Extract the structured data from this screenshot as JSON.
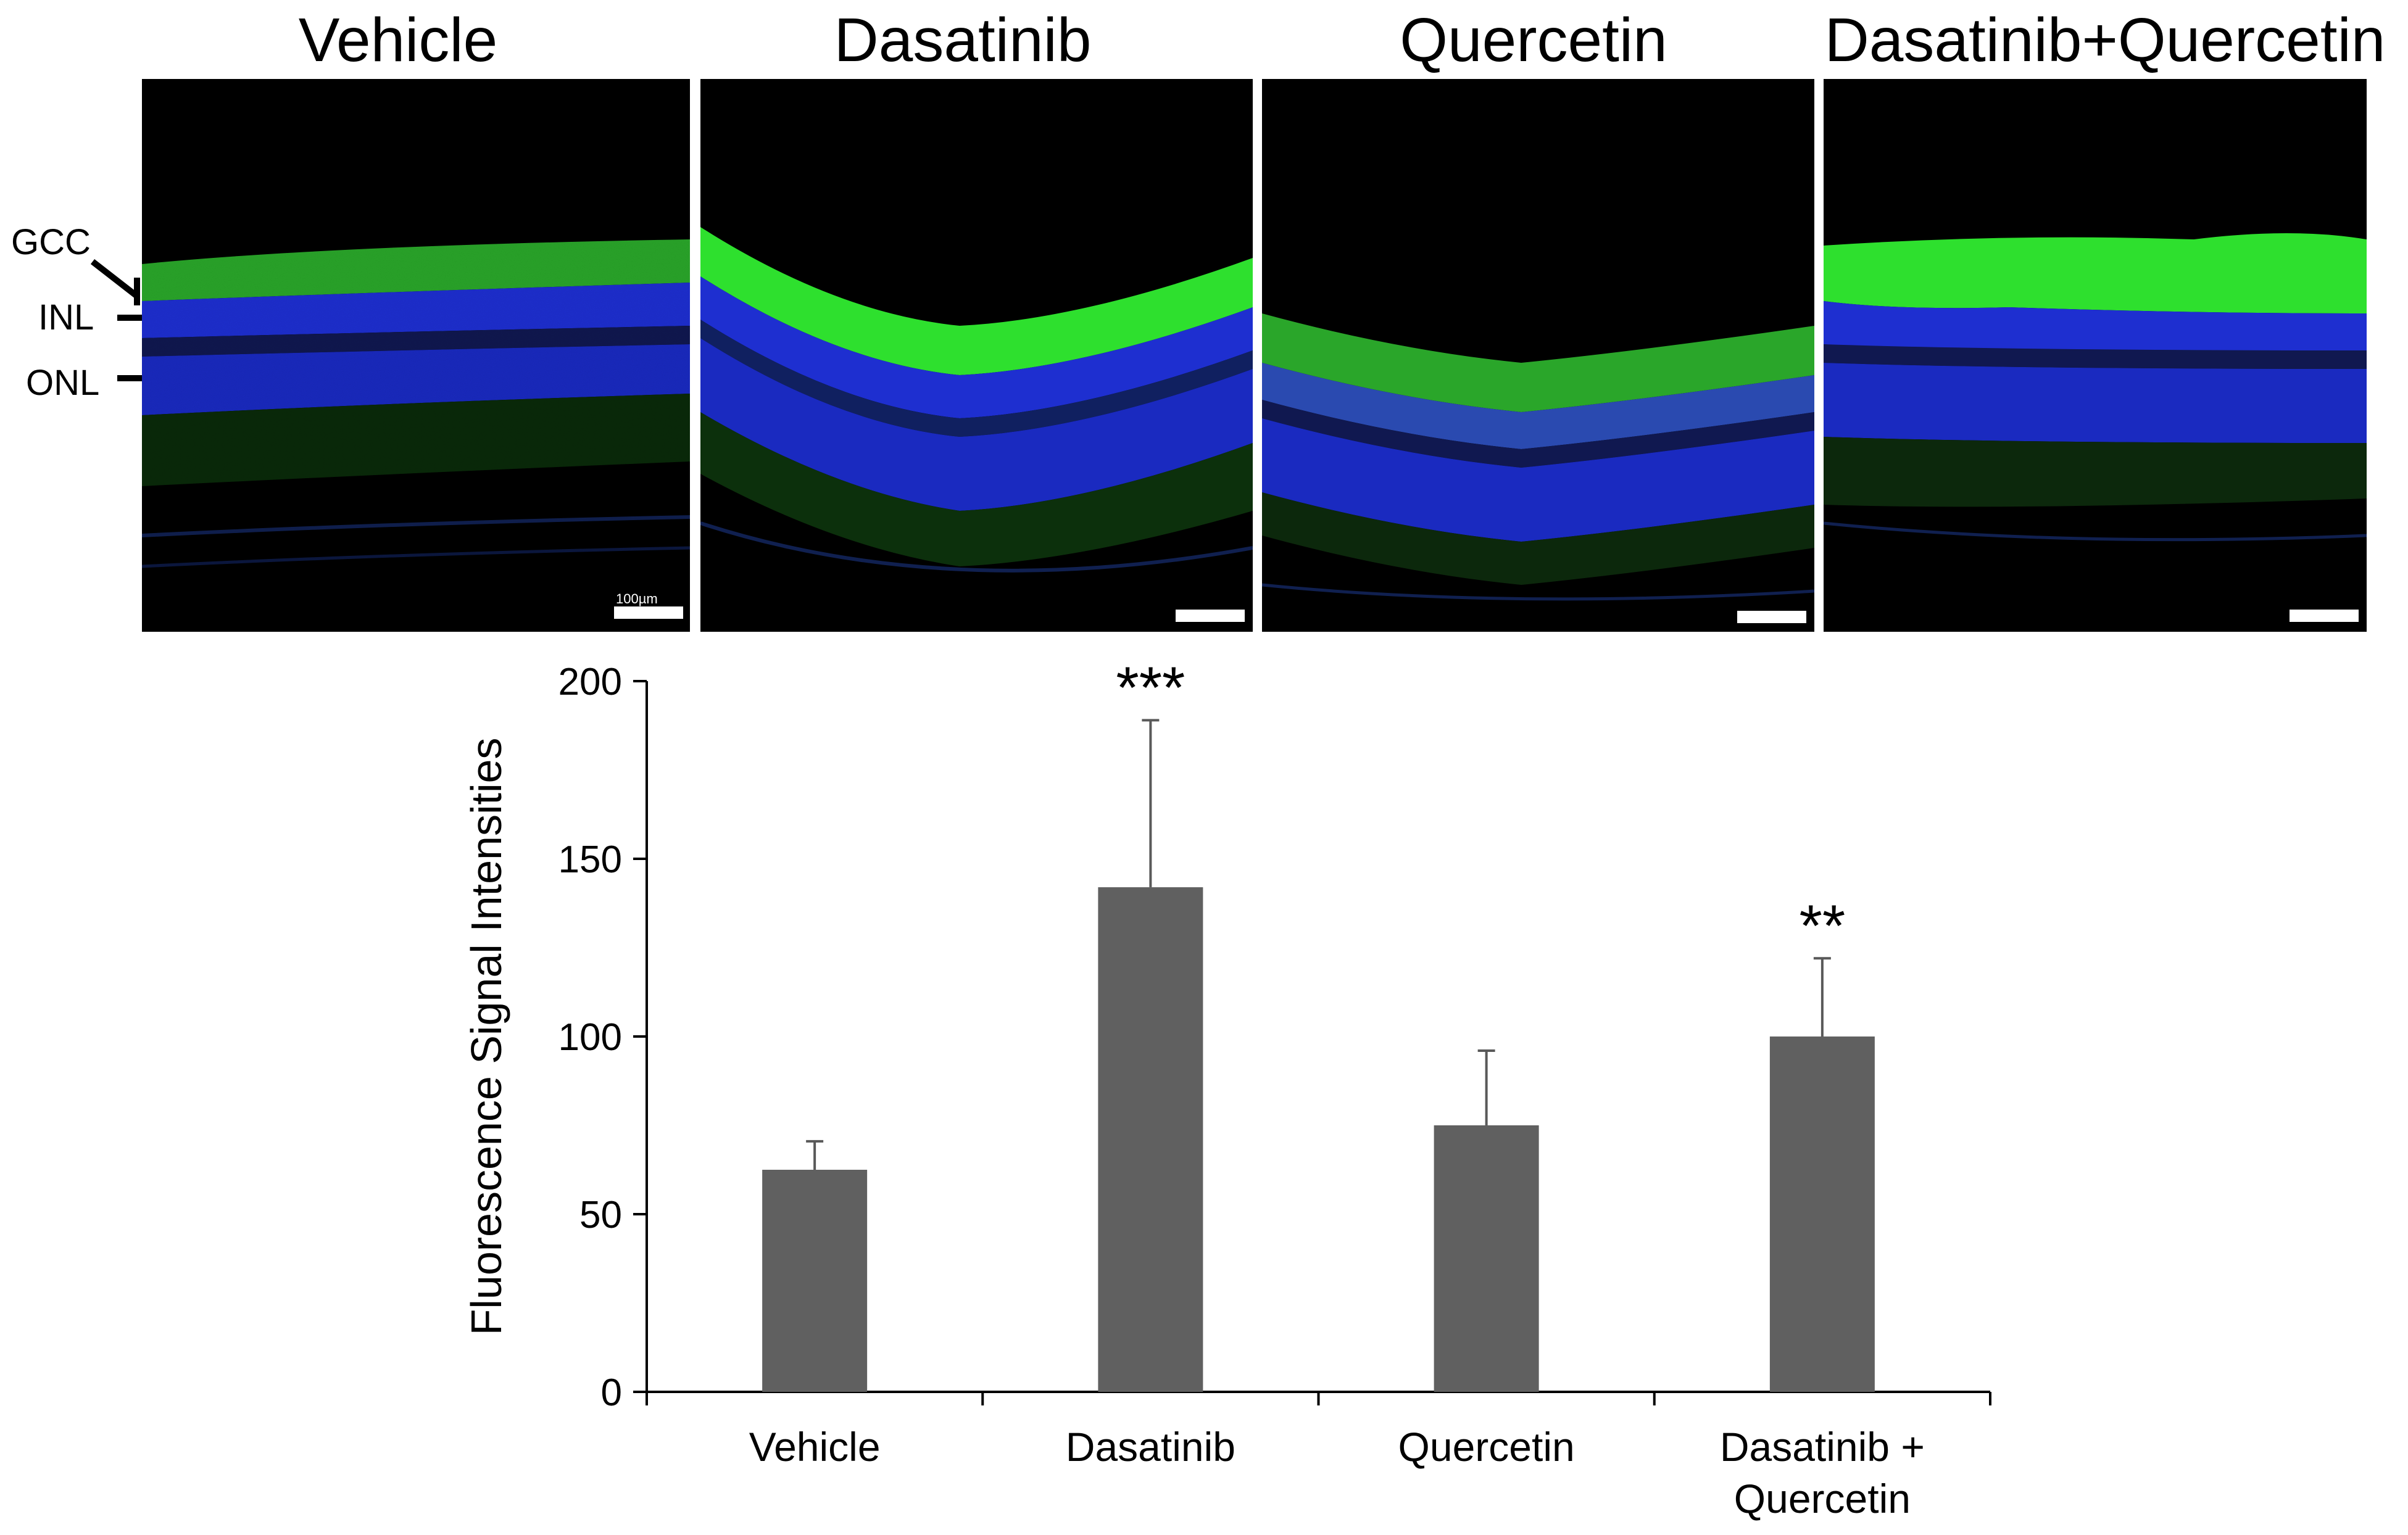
{
  "panels": [
    {
      "title": "Vehicle",
      "scale_bar_label": "100µm"
    },
    {
      "title": "Dasatinib"
    },
    {
      "title": "Quercetin"
    },
    {
      "title": "Dasatinib+Quercetin"
    }
  ],
  "layer_labels": {
    "gcc": "GCC",
    "inl": "INL",
    "onl": "ONL"
  },
  "colors": {
    "bar": "#606060",
    "gcc_green": "#2ee02e",
    "nuclei_blue": "#1e2fd0"
  },
  "chart_data": {
    "type": "bar",
    "categories": [
      "Vehicle",
      "Dasatinib",
      "Quercetin",
      "Dasatinib + Quercetin"
    ],
    "category_lines": [
      [
        "Vehicle"
      ],
      [
        "Dasatinib"
      ],
      [
        "Quercetin"
      ],
      [
        "Dasatinib +",
        "Quercetin"
      ]
    ],
    "values": [
      62.5,
      142,
      75,
      100
    ],
    "errors": [
      8,
      47,
      21,
      22
    ],
    "significance": [
      "",
      "***",
      "",
      "**"
    ],
    "ylabel": "Fluorescence Signal Intensities",
    "xlabel": "",
    "ylim": [
      0,
      200
    ],
    "yticks": [
      0,
      50,
      100,
      150,
      200
    ]
  }
}
